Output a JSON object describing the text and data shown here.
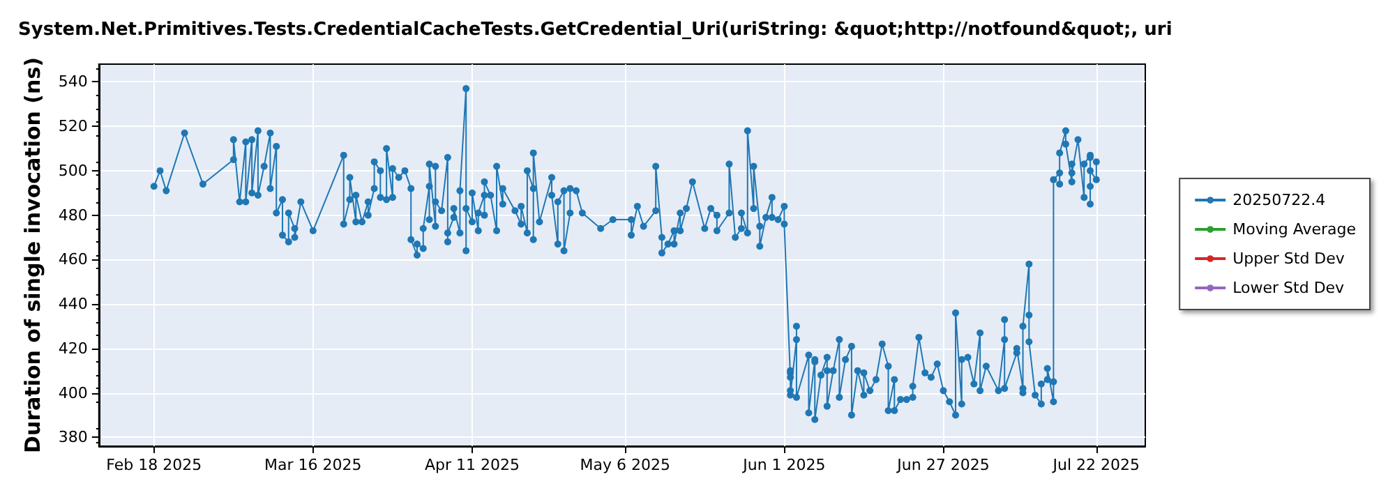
{
  "chart_data": {
    "type": "line",
    "title": "System.Net.Primitives.Tests.CredentialCacheTests.GetCredential_Uri(uriString: &quot;http://notfound&quot;, uri",
    "ylabel": "Duration of single invocation (ns)",
    "xlim": [
      "2025-02-09",
      "2025-07-30"
    ],
    "xticks": [
      {
        "value": "2025-02-18",
        "label": "Feb 18 2025"
      },
      {
        "value": "2025-03-16",
        "label": "Mar 16 2025"
      },
      {
        "value": "2025-04-11",
        "label": "Apr 11 2025"
      },
      {
        "value": "2025-05-06",
        "label": "May 6 2025"
      },
      {
        "value": "2025-06-01",
        "label": "Jun 1 2025"
      },
      {
        "value": "2025-06-27",
        "label": "Jun 27 2025"
      },
      {
        "value": "2025-07-22",
        "label": "Jul 22 2025"
      }
    ],
    "ylim": [
      376,
      548
    ],
    "yticks": [
      380,
      400,
      420,
      440,
      460,
      480,
      500,
      520,
      540
    ],
    "grid": true,
    "legend": "right",
    "marker": "circle",
    "line_style": "solid",
    "series": [
      {
        "name": "20250722.4",
        "color": "#1f77b4",
        "x": [
          "2025-02-18",
          "2025-02-19",
          "2025-02-20",
          "2025-02-23",
          "2025-02-26",
          "2025-03-03",
          "2025-03-03",
          "2025-03-04",
          "2025-03-05",
          "2025-03-05",
          "2025-03-06",
          "2025-03-06",
          "2025-03-07",
          "2025-03-07",
          "2025-03-08",
          "2025-03-09",
          "2025-03-09",
          "2025-03-10",
          "2025-03-10",
          "2025-03-11",
          "2025-03-11",
          "2025-03-12",
          "2025-03-12",
          "2025-03-13",
          "2025-03-13",
          "2025-03-14",
          "2025-03-16",
          "2025-03-21",
          "2025-03-21",
          "2025-03-22",
          "2025-03-22",
          "2025-03-23",
          "2025-03-23",
          "2025-03-24",
          "2025-03-25",
          "2025-03-25",
          "2025-03-26",
          "2025-03-26",
          "2025-03-27",
          "2025-03-27",
          "2025-03-28",
          "2025-03-28",
          "2025-03-29",
          "2025-03-29",
          "2025-03-30",
          "2025-03-31",
          "2025-04-01",
          "2025-04-01",
          "2025-04-02",
          "2025-04-02",
          "2025-04-03",
          "2025-04-03",
          "2025-04-04",
          "2025-04-04",
          "2025-04-04",
          "2025-04-05",
          "2025-04-05",
          "2025-04-05",
          "2025-04-06",
          "2025-04-07",
          "2025-04-07",
          "2025-04-07",
          "2025-04-08",
          "2025-04-08",
          "2025-04-09",
          "2025-04-09",
          "2025-04-10",
          "2025-04-10",
          "2025-04-10",
          "2025-04-11",
          "2025-04-11",
          "2025-04-12",
          "2025-04-12",
          "2025-04-13",
          "2025-04-13",
          "2025-04-13",
          "2025-04-14",
          "2025-04-15",
          "2025-04-15",
          "2025-04-16",
          "2025-04-16",
          "2025-04-18",
          "2025-04-19",
          "2025-04-19",
          "2025-04-20",
          "2025-04-20",
          "2025-04-21",
          "2025-04-21",
          "2025-04-21",
          "2025-04-22",
          "2025-04-24",
          "2025-04-24",
          "2025-04-25",
          "2025-04-25",
          "2025-04-26",
          "2025-04-26",
          "2025-04-27",
          "2025-04-27",
          "2025-04-28",
          "2025-04-29",
          "2025-05-02",
          "2025-05-04",
          "2025-05-07",
          "2025-05-07",
          "2025-05-08",
          "2025-05-09",
          "2025-05-11",
          "2025-05-11",
          "2025-05-12",
          "2025-05-12",
          "2025-05-13",
          "2025-05-14",
          "2025-05-14",
          "2025-05-15",
          "2025-05-15",
          "2025-05-16",
          "2025-05-17",
          "2025-05-19",
          "2025-05-20",
          "2025-05-21",
          "2025-05-21",
          "2025-05-23",
          "2025-05-23",
          "2025-05-24",
          "2025-05-25",
          "2025-05-25",
          "2025-05-26",
          "2025-05-26",
          "2025-05-27",
          "2025-05-27",
          "2025-05-28",
          "2025-05-28",
          "2025-05-29",
          "2025-05-30",
          "2025-05-30",
          "2025-05-31",
          "2025-06-01",
          "2025-06-01",
          "2025-06-02",
          "2025-06-02",
          "2025-06-02",
          "2025-06-02",
          "2025-06-02",
          "2025-06-03",
          "2025-06-03",
          "2025-06-03",
          "2025-06-05",
          "2025-06-05",
          "2025-06-06",
          "2025-06-06",
          "2025-06-06",
          "2025-06-07",
          "2025-06-08",
          "2025-06-08",
          "2025-06-08",
          "2025-06-09",
          "2025-06-10",
          "2025-06-10",
          "2025-06-11",
          "2025-06-12",
          "2025-06-12",
          "2025-06-13",
          "2025-06-14",
          "2025-06-14",
          "2025-06-15",
          "2025-06-16",
          "2025-06-17",
          "2025-06-18",
          "2025-06-18",
          "2025-06-19",
          "2025-06-19",
          "2025-06-20",
          "2025-06-21",
          "2025-06-22",
          "2025-06-22",
          "2025-06-23",
          "2025-06-24",
          "2025-06-25",
          "2025-06-26",
          "2025-06-27",
          "2025-06-28",
          "2025-06-29",
          "2025-06-29",
          "2025-06-30",
          "2025-06-30",
          "2025-07-01",
          "2025-07-02",
          "2025-07-03",
          "2025-07-03",
          "2025-07-04",
          "2025-07-06",
          "2025-07-07",
          "2025-07-07",
          "2025-07-07",
          "2025-07-09",
          "2025-07-09",
          "2025-07-10",
          "2025-07-10",
          "2025-07-10",
          "2025-07-11",
          "2025-07-11",
          "2025-07-11",
          "2025-07-12",
          "2025-07-13",
          "2025-07-13",
          "2025-07-14",
          "2025-07-14",
          "2025-07-15",
          "2025-07-15",
          "2025-07-15",
          "2025-07-16",
          "2025-07-16",
          "2025-07-16",
          "2025-07-17",
          "2025-07-17",
          "2025-07-18",
          "2025-07-18",
          "2025-07-18",
          "2025-07-19",
          "2025-07-20",
          "2025-07-20",
          "2025-07-21",
          "2025-07-21",
          "2025-07-21",
          "2025-07-21",
          "2025-07-21",
          "2025-07-22",
          "2025-07-22"
        ],
        "values": [
          493,
          500,
          491,
          517,
          494,
          505,
          514,
          486,
          513,
          486,
          514,
          490,
          518,
          489,
          502,
          517,
          492,
          511,
          481,
          487,
          471,
          468,
          481,
          474,
          470,
          486,
          473,
          507,
          476,
          487,
          497,
          477,
          489,
          477,
          486,
          480,
          492,
          504,
          500,
          488,
          487,
          510,
          488,
          501,
          497,
          500,
          492,
          469,
          462,
          467,
          465,
          474,
          493,
          478,
          503,
          475,
          502,
          486,
          482,
          506,
          468,
          472,
          479,
          483,
          472,
          491,
          537,
          464,
          483,
          477,
          490,
          473,
          481,
          489,
          480,
          495,
          489,
          473,
          502,
          485,
          492,
          482,
          476,
          484,
          472,
          500,
          492,
          469,
          508,
          477,
          497,
          489,
          467,
          486,
          491,
          464,
          481,
          492,
          491,
          481,
          474,
          478,
          478,
          471,
          484,
          475,
          482,
          502,
          470,
          463,
          467,
          473,
          467,
          481,
          473,
          483,
          495,
          474,
          483,
          480,
          473,
          481,
          503,
          470,
          474,
          481,
          472,
          518,
          483,
          502,
          475,
          466,
          479,
          488,
          479,
          478,
          484,
          476,
          407,
          401,
          410,
          409,
          399,
          424,
          430,
          398,
          417,
          391,
          415,
          414,
          388,
          408,
          416,
          410,
          394,
          410,
          424,
          398,
          415,
          421,
          390,
          410,
          399,
          409,
          401,
          406,
          422,
          412,
          392,
          406,
          392,
          397,
          397,
          398,
          403,
          425,
          409,
          407,
          413,
          401,
          396,
          390,
          436,
          395,
          415,
          416,
          404,
          427,
          401,
          412,
          401,
          424,
          433,
          402,
          418,
          420,
          402,
          400,
          430,
          458,
          435,
          423,
          399,
          395,
          404,
          406,
          411,
          396,
          405,
          496,
          499,
          494,
          508,
          518,
          512,
          495,
          503,
          499,
          514,
          488,
          503,
          507,
          485,
          493,
          506,
          500,
          496,
          504
        ]
      },
      {
        "name": "Moving Average",
        "color": "#2ca02c"
      },
      {
        "name": "Upper Std Dev",
        "color": "#d62728"
      },
      {
        "name": "Lower Std Dev",
        "color": "#9467bd"
      }
    ]
  }
}
